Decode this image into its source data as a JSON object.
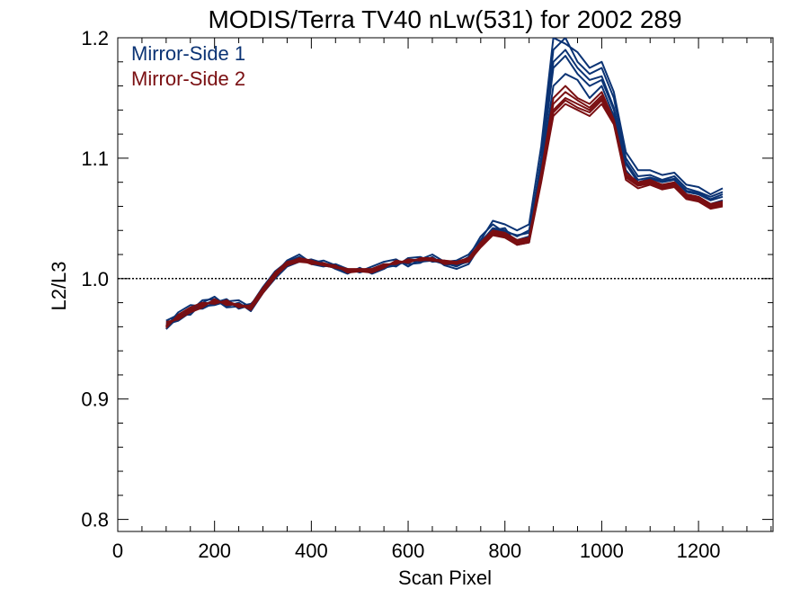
{
  "chart_data": {
    "type": "line",
    "title": "MODIS/Terra TV40 nLw(531) for 2002 289",
    "xlabel": "Scan Pixel",
    "ylabel": "L2/L3",
    "xlim": [
      0,
      1354
    ],
    "ylim": [
      0.79,
      1.2
    ],
    "x_major_ticks": [
      0,
      200,
      400,
      600,
      800,
      1000,
      1200
    ],
    "x_tick_labels": [
      "0",
      "200",
      "400",
      "600",
      "800",
      "1000",
      "1200"
    ],
    "x_minor_step": 50,
    "y_major_ticks": [
      0.8,
      0.9,
      1.0,
      1.1,
      1.2
    ],
    "y_tick_labels": [
      "0.8",
      "0.9",
      "1.0",
      "1.1",
      "1.2"
    ],
    "y_minor_step": 0.02,
    "reference_line": {
      "y": 1.0,
      "style": "dotted",
      "color": "#000000"
    },
    "legend_position": "top-left",
    "grid": false,
    "x": [
      100,
      125,
      150,
      175,
      200,
      225,
      250,
      275,
      300,
      325,
      350,
      375,
      400,
      425,
      450,
      475,
      500,
      525,
      550,
      575,
      600,
      625,
      650,
      675,
      700,
      725,
      750,
      775,
      800,
      825,
      850,
      875,
      900,
      925,
      950,
      975,
      1000,
      1025,
      1050,
      1075,
      1100,
      1125,
      1150,
      1175,
      1200,
      1225,
      1250
    ],
    "series": [
      {
        "name": "Mirror-Side 1",
        "color": "#0b3374",
        "lines": [
          [
            0.962,
            0.965,
            0.972,
            0.978,
            0.982,
            0.979,
            0.978,
            0.975,
            0.99,
            1.003,
            1.012,
            1.016,
            1.014,
            1.012,
            1.01,
            1.006,
            1.007,
            1.006,
            1.01,
            1.012,
            1.014,
            1.015,
            1.016,
            1.013,
            1.01,
            1.015,
            1.03,
            1.042,
            1.04,
            1.035,
            1.04,
            1.095,
            1.175,
            1.185,
            1.17,
            1.16,
            1.165,
            1.14,
            1.095,
            1.08,
            1.083,
            1.08,
            1.082,
            1.072,
            1.07,
            1.065,
            1.068
          ],
          [
            0.958,
            0.968,
            0.975,
            0.975,
            0.98,
            0.983,
            0.975,
            0.978,
            0.993,
            1.006,
            1.014,
            1.018,
            1.012,
            1.01,
            1.012,
            1.008,
            1.005,
            1.008,
            1.012,
            1.01,
            1.017,
            1.018,
            1.014,
            1.015,
            1.012,
            1.018,
            1.035,
            1.045,
            1.038,
            1.032,
            1.035,
            1.1,
            1.19,
            1.2,
            1.18,
            1.17,
            1.175,
            1.15,
            1.1,
            1.085,
            1.086,
            1.082,
            1.085,
            1.075,
            1.072,
            1.068,
            1.072
          ],
          [
            0.965,
            0.97,
            0.97,
            0.98,
            0.985,
            0.977,
            0.98,
            0.973,
            0.988,
            1.0,
            1.01,
            1.014,
            1.016,
            1.013,
            1.008,
            1.004,
            1.009,
            1.004,
            1.008,
            1.014,
            1.012,
            1.013,
            1.018,
            1.011,
            1.008,
            1.012,
            1.028,
            1.04,
            1.042,
            1.028,
            1.03,
            1.09,
            1.16,
            1.17,
            1.165,
            1.15,
            1.16,
            1.135,
            1.09,
            1.078,
            1.08,
            1.077,
            1.079,
            1.07,
            1.068,
            1.062,
            1.065
          ],
          [
            0.96,
            0.972,
            0.978,
            0.977,
            0.978,
            0.981,
            0.982,
            0.976,
            0.991,
            1.004,
            1.015,
            1.02,
            1.013,
            1.015,
            1.011,
            1.007,
            1.006,
            1.01,
            1.014,
            1.016,
            1.01,
            1.016,
            1.02,
            1.014,
            1.015,
            1.02,
            1.032,
            1.048,
            1.045,
            1.04,
            1.045,
            1.11,
            1.2,
            1.195,
            1.188,
            1.175,
            1.18,
            1.155,
            1.105,
            1.09,
            1.09,
            1.086,
            1.088,
            1.078,
            1.076,
            1.07,
            1.075
          ],
          [
            0.963,
            0.966,
            0.973,
            0.982,
            0.983,
            0.976,
            0.977,
            0.979,
            0.989,
            1.002,
            1.011,
            1.015,
            1.015,
            1.011,
            1.009,
            1.005,
            1.008,
            1.005,
            1.009,
            1.011,
            1.015,
            1.014,
            1.015,
            1.012,
            1.011,
            1.014,
            1.031,
            1.041,
            1.039,
            1.036,
            1.038,
            1.098,
            1.18,
            1.19,
            1.175,
            1.165,
            1.168,
            1.142,
            1.097,
            1.082,
            1.084,
            1.081,
            1.083,
            1.073,
            1.071,
            1.066,
            1.07
          ]
        ]
      },
      {
        "name": "Mirror-Side 2",
        "color": "#7a0f12",
        "lines": [
          [
            0.961,
            0.968,
            0.974,
            0.978,
            0.981,
            0.98,
            0.977,
            0.976,
            0.991,
            1.004,
            1.012,
            1.015,
            1.013,
            1.011,
            1.009,
            1.007,
            1.007,
            1.007,
            1.011,
            1.013,
            1.015,
            1.016,
            1.015,
            1.014,
            1.012,
            1.016,
            1.028,
            1.038,
            1.036,
            1.03,
            1.032,
            1.085,
            1.14,
            1.15,
            1.145,
            1.14,
            1.15,
            1.13,
            1.085,
            1.078,
            1.08,
            1.076,
            1.078,
            1.068,
            1.066,
            1.06,
            1.062
          ],
          [
            0.964,
            0.966,
            0.972,
            0.976,
            0.983,
            0.978,
            0.979,
            0.974,
            0.988,
            1.001,
            1.013,
            1.017,
            1.015,
            1.012,
            1.011,
            1.005,
            1.006,
            1.005,
            1.009,
            1.015,
            1.013,
            1.017,
            1.017,
            1.012,
            1.013,
            1.014,
            1.026,
            1.036,
            1.034,
            1.028,
            1.03,
            1.08,
            1.135,
            1.145,
            1.14,
            1.135,
            1.145,
            1.128,
            1.082,
            1.075,
            1.078,
            1.074,
            1.076,
            1.066,
            1.064,
            1.058,
            1.06
          ],
          [
            0.959,
            0.97,
            0.976,
            0.98,
            0.979,
            0.982,
            0.976,
            0.978,
            0.992,
            1.005,
            1.014,
            1.016,
            1.012,
            1.013,
            1.01,
            1.008,
            1.008,
            1.008,
            1.012,
            1.012,
            1.016,
            1.015,
            1.016,
            1.015,
            1.014,
            1.017,
            1.03,
            1.04,
            1.038,
            1.032,
            1.034,
            1.088,
            1.15,
            1.16,
            1.15,
            1.145,
            1.155,
            1.132,
            1.088,
            1.08,
            1.082,
            1.078,
            1.08,
            1.07,
            1.068,
            1.062,
            1.064
          ],
          [
            0.962,
            0.967,
            0.975,
            0.977,
            0.982,
            0.979,
            0.978,
            0.977,
            0.99,
            1.003,
            1.013,
            1.016,
            1.014,
            1.012,
            1.01,
            1.006,
            1.007,
            1.006,
            1.01,
            1.014,
            1.014,
            1.016,
            1.016,
            1.013,
            1.013,
            1.015,
            1.027,
            1.037,
            1.035,
            1.029,
            1.031,
            1.083,
            1.138,
            1.148,
            1.142,
            1.138,
            1.148,
            1.129,
            1.084,
            1.077,
            1.079,
            1.075,
            1.077,
            1.067,
            1.065,
            1.059,
            1.061
          ],
          [
            0.96,
            0.969,
            0.973,
            0.979,
            0.98,
            0.981,
            0.978,
            0.975,
            0.989,
            1.002,
            1.011,
            1.014,
            1.013,
            1.012,
            1.009,
            1.007,
            1.007,
            1.007,
            1.011,
            1.013,
            1.014,
            1.016,
            1.015,
            1.014,
            1.012,
            1.015,
            1.029,
            1.039,
            1.037,
            1.031,
            1.033,
            1.086,
            1.145,
            1.155,
            1.148,
            1.142,
            1.152,
            1.131,
            1.086,
            1.079,
            1.081,
            1.077,
            1.079,
            1.069,
            1.067,
            1.061,
            1.063
          ]
        ]
      }
    ]
  }
}
